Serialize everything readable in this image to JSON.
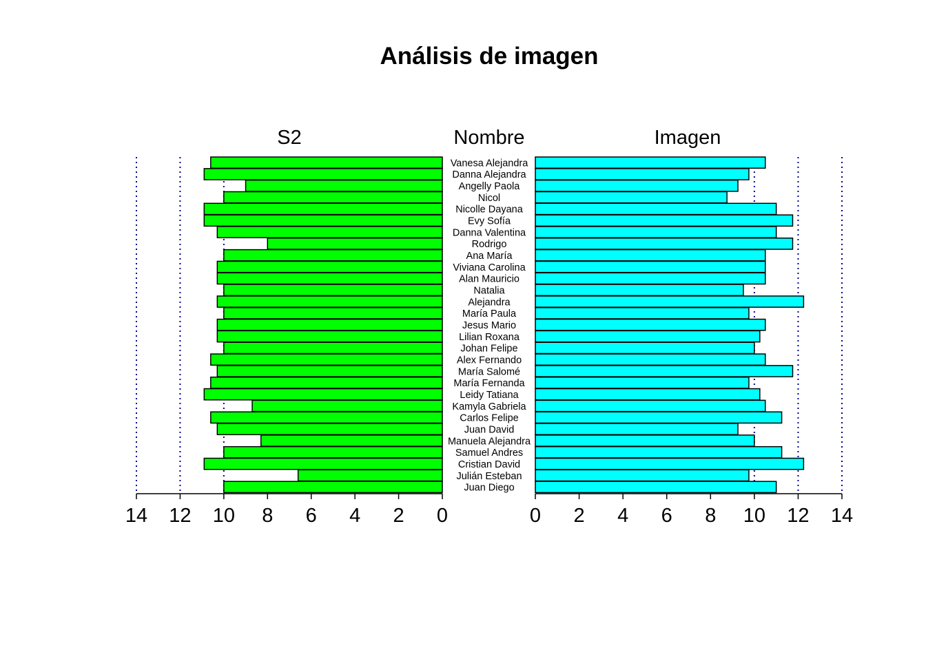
{
  "chart_data": {
    "type": "bar",
    "orientation": "horizontal",
    "layout": "back-to-back",
    "title": "Análisis de imagen",
    "center_label": "Nombre",
    "categories": [
      "Vanesa Alejandra",
      "Danna Alejandra",
      "Angelly Paola",
      "Nicol",
      "Nicolle Dayana",
      "Evy Sofía",
      "Danna Valentina",
      "Rodrigo",
      "Ana María",
      "Viviana Carolina",
      "Alan Mauricio",
      "Natalia",
      "Alejandra",
      "María Paula",
      "Jesus Mario",
      "Lilian Roxana",
      "Johan Felipe",
      "Alex Fernando",
      "María Salomé",
      "María Fernanda",
      "Leidy Tatiana",
      "Kamyla Gabriela",
      "Carlos Felipe",
      "Juan David",
      "Manuela Alejandra",
      "Samuel Andres",
      "Cristian David",
      "Julián Esteban",
      "Juan Diego"
    ],
    "series": [
      {
        "name": "S2",
        "side": "left",
        "color": "#00FF00",
        "values": [
          10.6,
          10.9,
          9.0,
          10.0,
          10.9,
          10.9,
          10.3,
          8.0,
          10.0,
          10.3,
          10.3,
          10.0,
          10.3,
          10.0,
          10.3,
          10.3,
          10.0,
          10.6,
          10.3,
          10.6,
          10.9,
          8.7,
          10.6,
          10.3,
          8.3,
          10.0,
          10.9,
          6.6,
          10.0
        ]
      },
      {
        "name": "Imagen",
        "side": "right",
        "color": "#00FFFF",
        "values": [
          10.5,
          9.75,
          9.25,
          8.75,
          11.0,
          11.75,
          11.0,
          11.75,
          10.5,
          10.5,
          10.5,
          9.5,
          12.25,
          9.75,
          10.5,
          10.25,
          10.0,
          10.5,
          11.75,
          9.75,
          10.25,
          10.5,
          11.25,
          9.25,
          10.0,
          11.25,
          12.25,
          9.75,
          11.0
        ]
      }
    ],
    "xlim": [
      0,
      14
    ],
    "xticks": [
      0,
      2,
      4,
      6,
      8,
      10,
      12,
      14
    ],
    "grid": {
      "left_lines": [
        10,
        12,
        14
      ],
      "right_lines": [
        10,
        12,
        14
      ],
      "style": "dotted",
      "color": "#00008B"
    }
  }
}
